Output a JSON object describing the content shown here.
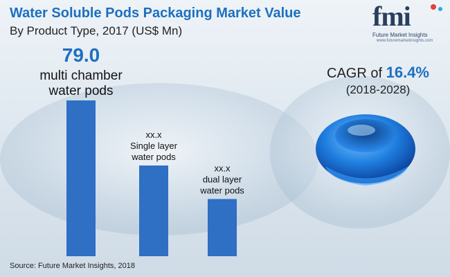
{
  "title": "Water Soluble Pods Packaging Market Value",
  "subtitle": "By Product Type, 2017 (US$ Mn)",
  "logo": {
    "text": "fmi",
    "sub": "Future Market Insights",
    "url": "www.futuremarketinsights.com",
    "colors": {
      "dot1": "#e63e3e",
      "dot2": "#2fa6e0"
    }
  },
  "cagr": {
    "prefix": "CAGR of",
    "value": "16.4%",
    "period": "(2018-2028)"
  },
  "source": "Source: Future Market Insights, 2018",
  "chart_data": {
    "type": "bar",
    "categories": [
      "multi chamber water pods",
      "Single layer water pods",
      "dual layer water pods"
    ],
    "values": [
      79.0,
      46,
      29
    ],
    "value_labels": [
      "79.0",
      "xx.x",
      "xx.x"
    ],
    "category_labels": [
      [
        "multi chamber",
        "water pods"
      ],
      [
        "Single layer",
        "water pods"
      ],
      [
        "dual layer",
        "water pods"
      ]
    ],
    "xlabel": "",
    "ylabel": "",
    "ylim": [
      0,
      90
    ],
    "bar_color": "#2f6fc4",
    "grid": false
  }
}
